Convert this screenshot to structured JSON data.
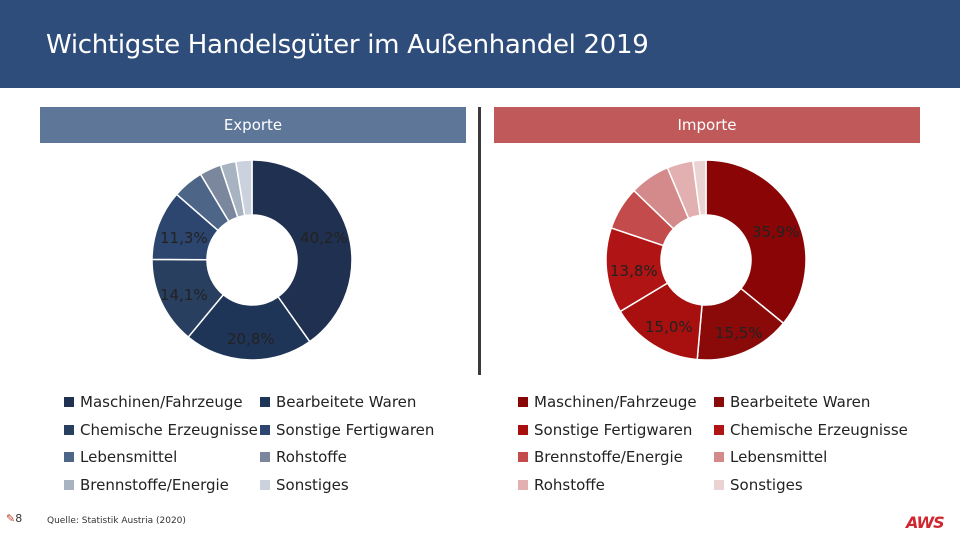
{
  "title": "Wichtigste Handelsgüter im Außenhandel 2019",
  "page_number": "8",
  "source": "Quelle: Statistik Austria (2020)",
  "logo_text": "AWS",
  "colors": {
    "header_bar": "#2e4d7b",
    "exports_header": "#5e7799",
    "imports_header": "#c05a5a"
  },
  "chart_data": [
    {
      "type": "pie",
      "donut": true,
      "title": "Exporte",
      "series": [
        {
          "name": "Maschinen/Fahrzeuge",
          "value": 40.2,
          "label": "40,2%",
          "color": "#1f3050"
        },
        {
          "name": "Bearbeitete Waren",
          "value": 20.8,
          "label": "20,8%",
          "color": "#1f3558"
        },
        {
          "name": "Chemische Erzeugnisse",
          "value": 14.1,
          "label": "14,1%",
          "color": "#293f60"
        },
        {
          "name": "Sonstige Fertigwaren",
          "value": 11.3,
          "label": "11,3%",
          "color": "#2c4670"
        },
        {
          "name": "Lebensmittel",
          "value": 5.0,
          "label": "",
          "color": "#4d6688"
        },
        {
          "name": "Rohstoffe",
          "value": 3.5,
          "label": "",
          "color": "#7a879c"
        },
        {
          "name": "Brennstoffe/Energie",
          "value": 2.5,
          "label": "",
          "color": "#a8b3c2"
        },
        {
          "name": "Sonstiges",
          "value": 2.6,
          "label": "",
          "color": "#ccd2dd"
        }
      ]
    },
    {
      "type": "pie",
      "donut": true,
      "title": "Importe",
      "series": [
        {
          "name": "Maschinen/Fahrzeuge",
          "value": 35.9,
          "label": "35,9%",
          "color": "#8a0606"
        },
        {
          "name": "Bearbeitete Waren",
          "value": 15.5,
          "label": "15,5%",
          "color": "#8a0a0a"
        },
        {
          "name": "Sonstige Fertigwaren",
          "value": 15.0,
          "label": "15,0%",
          "color": "#a80f0f"
        },
        {
          "name": "Chemische Erzeugnisse",
          "value": 13.8,
          "label": "13,8%",
          "color": "#b01414"
        },
        {
          "name": "Brennstoffe/Energie",
          "value": 7.0,
          "label": "",
          "color": "#c44b4b"
        },
        {
          "name": "Lebensmittel",
          "value": 6.5,
          "label": "",
          "color": "#d48a8a"
        },
        {
          "name": "Rohstoffe",
          "value": 4.2,
          "label": "",
          "color": "#e2b0b0"
        },
        {
          "name": "Sonstiges",
          "value": 2.1,
          "label": "",
          "color": "#ecd3d3"
        }
      ]
    }
  ],
  "legends": {
    "exports": [
      "Maschinen/Fahrzeuge",
      "Bearbeitete Waren",
      "Chemische Erzeugnisse",
      "Sonstige Fertigwaren",
      "Lebensmittel",
      "Rohstoffe",
      "Brennstoffe/Energie",
      "Sonstiges"
    ],
    "imports": [
      "Maschinen/Fahrzeuge",
      "Bearbeitete Waren",
      "Sonstige Fertigwaren",
      "Chemische Erzeugnisse",
      "Brennstoffe/Energie",
      "Lebensmittel",
      "Rohstoffe",
      "Sonstiges"
    ]
  }
}
